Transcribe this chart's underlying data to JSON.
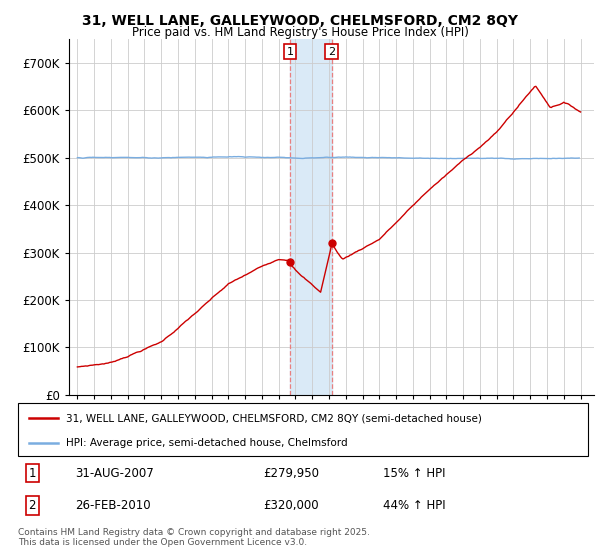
{
  "title": "31, WELL LANE, GALLEYWOOD, CHELMSFORD, CM2 8QY",
  "subtitle": "Price paid vs. HM Land Registry's House Price Index (HPI)",
  "legend_label_red": "31, WELL LANE, GALLEYWOOD, CHELMSFORD, CM2 8QY (semi-detached house)",
  "legend_label_blue": "HPI: Average price, semi-detached house, Chelmsford",
  "annotation1_date": "31-AUG-2007",
  "annotation1_price": "£279,950",
  "annotation1_hpi": "15% ↑ HPI",
  "annotation2_date": "26-FEB-2010",
  "annotation2_price": "£320,000",
  "annotation2_hpi": "44% ↑ HPI",
  "footer": "Contains HM Land Registry data © Crown copyright and database right 2025.\nThis data is licensed under the Open Government Licence v3.0.",
  "red_color": "#cc0000",
  "blue_color": "#7aade0",
  "shaded_color": "#daeaf7",
  "vline_color": "#e88080",
  "annotation_box_color": "#cc0000",
  "background_color": "#ffffff",
  "grid_color": "#cccccc",
  "ylim": [
    0,
    750000
  ],
  "ytick_vals": [
    0,
    100000,
    200000,
    300000,
    400000,
    500000,
    600000,
    700000
  ],
  "ytick_labels": [
    "£0",
    "£100K",
    "£200K",
    "£300K",
    "£400K",
    "£500K",
    "£600K",
    "£700K"
  ],
  "xlim": [
    1994.5,
    2025.8
  ],
  "sale1_x": 2007.667,
  "sale1_y": 279950,
  "sale2_x": 2010.167,
  "sale2_y": 320000
}
